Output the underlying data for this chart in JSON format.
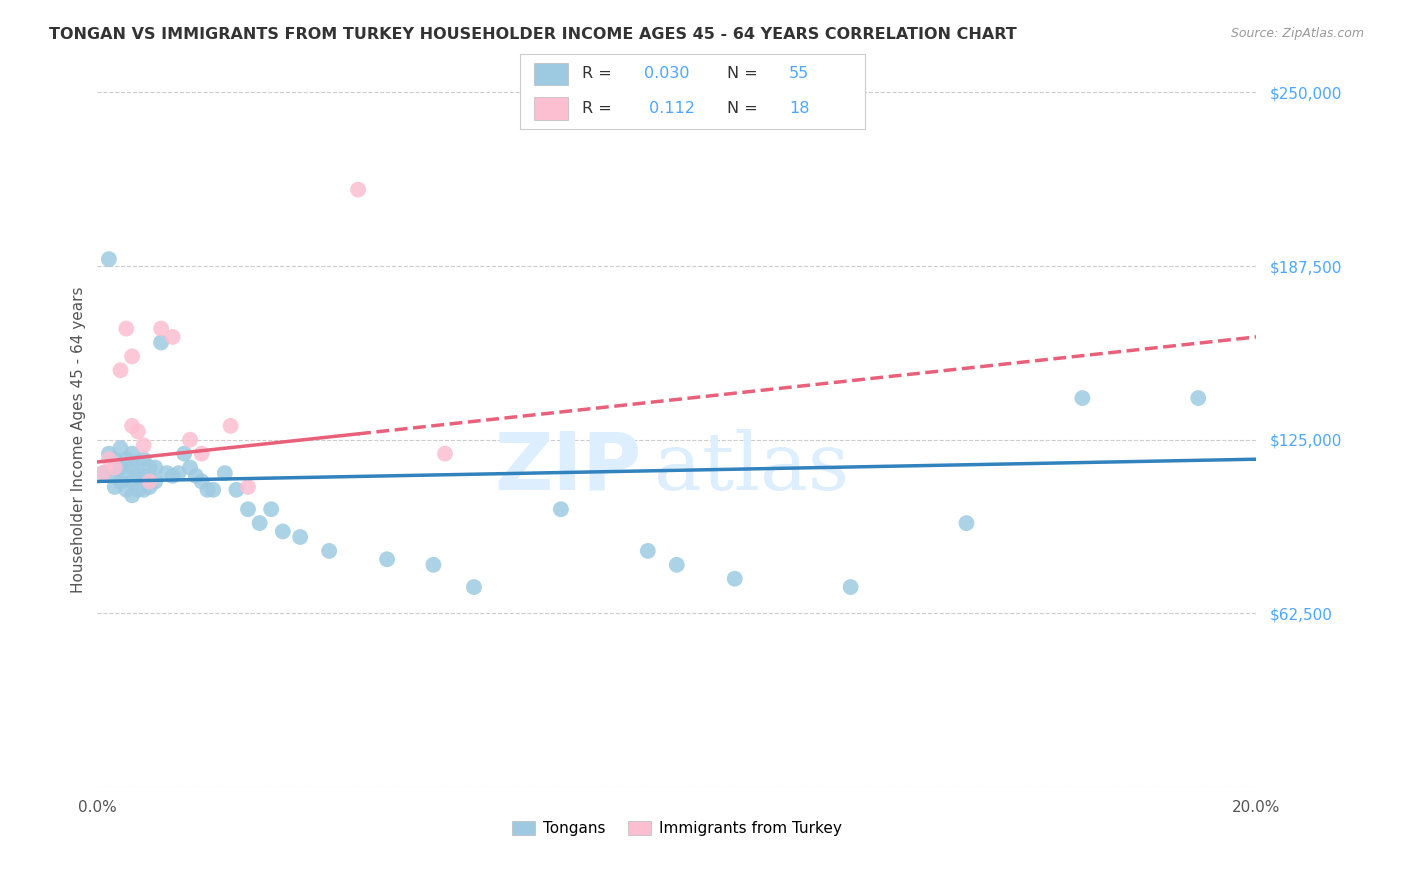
{
  "title": "TONGAN VS IMMIGRANTS FROM TURKEY HOUSEHOLDER INCOME AGES 45 - 64 YEARS CORRELATION CHART",
  "source": "Source: ZipAtlas.com",
  "ylabel": "Householder Income Ages 45 - 64 years",
  "xlim": [
    0.0,
    0.2
  ],
  "ylim": [
    0,
    250000
  ],
  "xtick_positions": [
    0.0,
    0.04,
    0.08,
    0.12,
    0.16,
    0.2
  ],
  "xticklabels": [
    "0.0%",
    "",
    "",
    "",
    "",
    "20.0%"
  ],
  "ytick_right_labels": [
    "$250,000",
    "$187,500",
    "$125,000",
    "$62,500"
  ],
  "ytick_right_values": [
    250000,
    187500,
    125000,
    62500
  ],
  "legend_bottom": [
    "Tongans",
    "Immigrants from Turkey"
  ],
  "blue_color": "#9ecae1",
  "pink_color": "#fcbfd2",
  "blue_line_color": "#3182bd",
  "pink_line_color": "#e8607a",
  "grid_color": "#cccccc",
  "title_color": "#333333",
  "axis_label_color": "#555555",
  "right_tick_color": "#4da6ff",
  "tongans_x": [
    0.001,
    0.002,
    0.002,
    0.003,
    0.003,
    0.003,
    0.004,
    0.004,
    0.004,
    0.005,
    0.005,
    0.005,
    0.006,
    0.006,
    0.006,
    0.006,
    0.007,
    0.007,
    0.007,
    0.008,
    0.008,
    0.008,
    0.009,
    0.009,
    0.01,
    0.01,
    0.011,
    0.012,
    0.013,
    0.014,
    0.015,
    0.016,
    0.017,
    0.018,
    0.019,
    0.02,
    0.022,
    0.024,
    0.026,
    0.028,
    0.03,
    0.032,
    0.035,
    0.04,
    0.05,
    0.058,
    0.065,
    0.08,
    0.095,
    0.1,
    0.11,
    0.13,
    0.15,
    0.17,
    0.19
  ],
  "tongans_y": [
    113000,
    190000,
    120000,
    118000,
    112000,
    108000,
    122000,
    115000,
    110000,
    118000,
    113000,
    107000,
    120000,
    115000,
    110000,
    105000,
    117000,
    112000,
    107000,
    118000,
    112000,
    107000,
    115000,
    108000,
    115000,
    110000,
    160000,
    113000,
    112000,
    113000,
    120000,
    115000,
    112000,
    110000,
    107000,
    107000,
    113000,
    107000,
    100000,
    95000,
    100000,
    92000,
    90000,
    85000,
    82000,
    80000,
    72000,
    100000,
    85000,
    80000,
    75000,
    72000,
    95000,
    140000,
    140000
  ],
  "turkey_x": [
    0.001,
    0.002,
    0.003,
    0.004,
    0.005,
    0.006,
    0.006,
    0.007,
    0.008,
    0.009,
    0.011,
    0.013,
    0.016,
    0.018,
    0.023,
    0.026,
    0.045,
    0.06
  ],
  "turkey_y": [
    113000,
    118000,
    115000,
    150000,
    165000,
    155000,
    130000,
    128000,
    123000,
    110000,
    165000,
    162000,
    125000,
    120000,
    130000,
    108000,
    215000,
    120000
  ],
  "blue_trendline_x": [
    0.0,
    0.2
  ],
  "blue_trendline_y": [
    110000,
    118000
  ],
  "pink_trendline_x": [
    0.0,
    0.2
  ],
  "pink_trendline_y": [
    117000,
    162000
  ],
  "watermark_zip": "ZIP",
  "watermark_atlas": "atlas",
  "watermark_color": "#ddeeff",
  "figsize": [
    14.06,
    8.92
  ],
  "dpi": 100
}
